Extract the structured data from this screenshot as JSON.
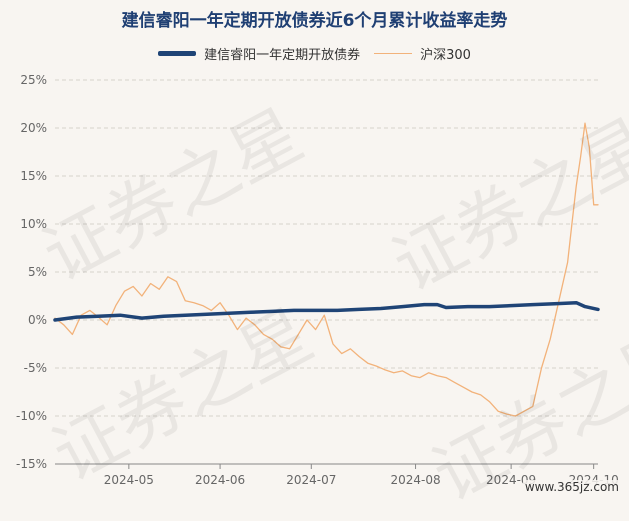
{
  "chart_data": {
    "type": "line",
    "title": "建信睿阳一年定期开放债券近6个月累计收益率走势",
    "xlabel": "",
    "ylabel": "",
    "ylim": [
      -15,
      25
    ],
    "yticks": [
      "25%",
      "20%",
      "15%",
      "10%",
      "5%",
      "0%",
      "-5%",
      "-10%",
      "-15%"
    ],
    "ytick_values": [
      25,
      20,
      15,
      10,
      5,
      0,
      -5,
      -10,
      -15
    ],
    "xticks": [
      "2024-05",
      "2024-06",
      "2024-07",
      "2024-08",
      "2024-09",
      "2024-10"
    ],
    "x_index_range": [
      0,
      125
    ],
    "xtick_index": [
      17,
      38,
      59,
      83,
      105,
      124
    ],
    "grid": "horizontal-dashed",
    "legend": "top-center",
    "series": [
      {
        "name": "建信睿阳一年定期开放债券",
        "color": "#1f4476",
        "x": [
          0,
          5,
          10,
          15,
          20,
          25,
          30,
          35,
          40,
          45,
          50,
          55,
          60,
          65,
          70,
          75,
          80,
          85,
          88,
          90,
          95,
          100,
          105,
          110,
          115,
          120,
          122,
          125
        ],
        "values": [
          0.0,
          0.3,
          0.4,
          0.5,
          0.2,
          0.4,
          0.5,
          0.6,
          0.7,
          0.8,
          0.9,
          1.0,
          1.0,
          1.0,
          1.1,
          1.2,
          1.4,
          1.6,
          1.6,
          1.3,
          1.4,
          1.4,
          1.5,
          1.6,
          1.7,
          1.8,
          1.4,
          1.1
        ]
      },
      {
        "name": "沪深300",
        "color": "#f2b27a",
        "x": [
          0,
          2,
          4,
          6,
          8,
          10,
          12,
          14,
          16,
          18,
          20,
          22,
          24,
          26,
          28,
          30,
          32,
          34,
          36,
          38,
          40,
          42,
          44,
          46,
          48,
          50,
          52,
          54,
          56,
          58,
          60,
          62,
          64,
          66,
          68,
          70,
          72,
          74,
          76,
          78,
          80,
          82,
          84,
          86,
          88,
          90,
          92,
          94,
          96,
          98,
          100,
          102,
          104,
          106,
          108,
          110,
          112,
          114,
          116,
          118,
          119,
          120,
          121,
          122,
          123,
          124,
          125
        ],
        "values": [
          0.2,
          -0.5,
          -1.5,
          0.5,
          1.0,
          0.3,
          -0.5,
          1.5,
          3.0,
          3.5,
          2.5,
          3.8,
          3.2,
          4.5,
          4.0,
          2.0,
          1.8,
          1.5,
          1.0,
          1.8,
          0.5,
          -1.0,
          0.2,
          -0.5,
          -1.5,
          -2.0,
          -2.8,
          -3.0,
          -1.5,
          0.0,
          -1.0,
          0.5,
          -2.5,
          -3.5,
          -3.0,
          -3.8,
          -4.5,
          -4.8,
          -5.2,
          -5.5,
          -5.3,
          -5.8,
          -6.0,
          -5.5,
          -5.8,
          -6.0,
          -6.5,
          -7.0,
          -7.5,
          -7.8,
          -8.5,
          -9.5,
          -9.8,
          -10.0,
          -9.5,
          -9.0,
          -5.0,
          -2.0,
          2.0,
          6.0,
          10.0,
          14.0,
          17.0,
          20.5,
          18.0,
          12.0,
          12.0
        ]
      }
    ]
  },
  "footer": {
    "site": "www.365jz.com"
  }
}
